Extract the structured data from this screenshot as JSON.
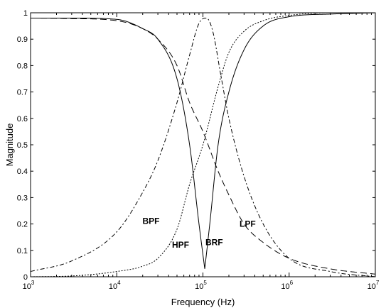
{
  "chart_data": {
    "type": "line",
    "xlabel": "Frequency (Hz)",
    "ylabel": "Magnitude",
    "xscale": "log",
    "xlim": [
      1000,
      10000000
    ],
    "ylim": [
      0,
      1
    ],
    "x_ticks": [
      1000,
      10000,
      100000,
      1000000,
      10000000
    ],
    "x_tick_labels": [
      {
        "base": "10",
        "exp": "3"
      },
      {
        "base": "10",
        "exp": "4"
      },
      {
        "base": "10",
        "exp": "5"
      },
      {
        "base": "10",
        "exp": "6"
      },
      {
        "base": "10",
        "exp": "7"
      }
    ],
    "y_ticks": [
      0,
      0.1,
      0.2,
      0.3,
      0.4,
      0.5,
      0.6,
      0.7,
      0.8,
      0.9,
      1
    ],
    "y_tick_labels": [
      "0",
      "0.1",
      "0.2",
      "0.3",
      "0.4",
      "0.5",
      "0.6",
      "0.7",
      "0.8",
      "0.9",
      "1"
    ],
    "grid": false,
    "series": [
      {
        "name": "LPF",
        "style": "dashed",
        "x": [
          1000,
          3000,
          10000,
          20000,
          30000,
          50000,
          70000,
          100000,
          150000,
          200000,
          300000,
          500000,
          1000000,
          3000000,
          10000000
        ],
        "y": [
          0.98,
          0.978,
          0.97,
          0.94,
          0.9,
          0.8,
          0.66,
          0.55,
          0.4,
          0.31,
          0.2,
          0.13,
          0.07,
          0.03,
          0.01
        ]
      },
      {
        "name": "HPF",
        "style": "dotted",
        "x": [
          1000,
          3000,
          10000,
          20000,
          30000,
          50000,
          70000,
          100000,
          150000,
          200000,
          300000,
          500000,
          1000000,
          3000000,
          10000000
        ],
        "y": [
          0.0,
          0.003,
          0.02,
          0.04,
          0.07,
          0.18,
          0.35,
          0.5,
          0.72,
          0.85,
          0.93,
          0.97,
          0.99,
          1.0,
          1.0
        ]
      },
      {
        "name": "BPF",
        "style": "dash-dot",
        "x": [
          1000,
          3000,
          10000,
          20000,
          30000,
          50000,
          70000,
          90000,
          110000,
          130000,
          160000,
          200000,
          300000,
          500000,
          1000000,
          3000000,
          10000000
        ],
        "y": [
          0.02,
          0.06,
          0.17,
          0.32,
          0.44,
          0.66,
          0.84,
          0.96,
          0.98,
          0.93,
          0.77,
          0.6,
          0.38,
          0.2,
          0.07,
          0.02,
          0.0
        ]
      },
      {
        "name": "BRF",
        "style": "solid",
        "x": [
          1000,
          3000,
          10000,
          20000,
          30000,
          50000,
          70000,
          90000,
          105000,
          120000,
          150000,
          200000,
          300000,
          500000,
          1000000,
          3000000,
          10000000
        ],
        "y": [
          0.98,
          0.98,
          0.975,
          0.94,
          0.9,
          0.75,
          0.5,
          0.2,
          0.03,
          0.2,
          0.5,
          0.7,
          0.86,
          0.95,
          0.985,
          0.995,
          1.0
        ]
      }
    ],
    "annotations": [
      {
        "text": "BPF",
        "x": 25000,
        "y": 0.2
      },
      {
        "text": "HPF",
        "x": 55000,
        "y": 0.11
      },
      {
        "text": "BRF",
        "x": 135000,
        "y": 0.12
      },
      {
        "text": "LPF",
        "x": 330000,
        "y": 0.19
      }
    ]
  }
}
